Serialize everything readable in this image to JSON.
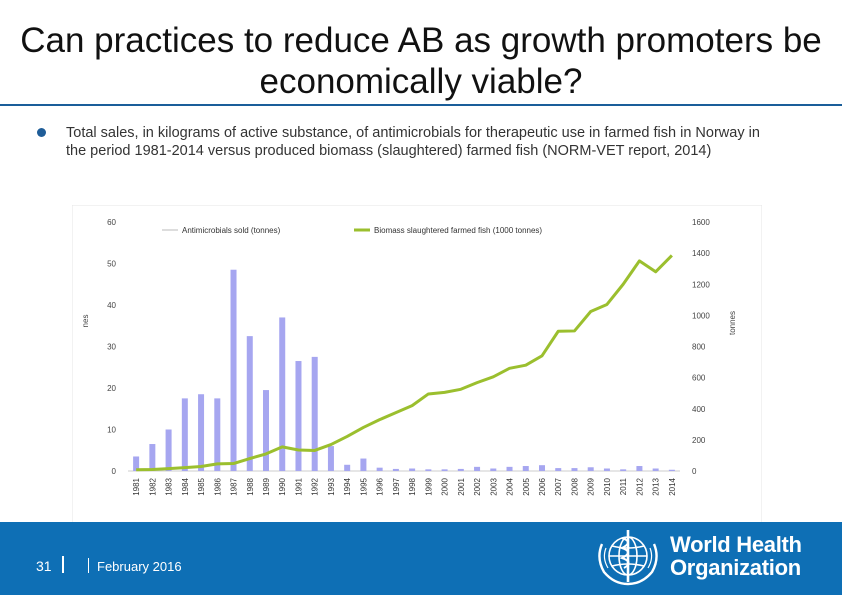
{
  "title": "Can practices to reduce AB as growth promoters be economically viable?",
  "bullet_text": "Total sales, in kilograms of active substance, of antimicrobials for therapeutic use in farmed fish in Norway in the period 1981-2014 versus produced biomass (slaughtered) farmed fish (NORM-VET report, 2014)",
  "footer": {
    "page_number": "31",
    "date": "February 2016",
    "org_line1": "World Health",
    "org_line2": "Organization"
  },
  "colors": {
    "footer_bg": "#0e6fb5",
    "bars": "#a6a6f0",
    "line": "#9bbf2e"
  },
  "chart_data": {
    "type": "bar",
    "categories": [
      "1981",
      "1982",
      "1983",
      "1984",
      "1985",
      "1986",
      "1987",
      "1988",
      "1989",
      "1990",
      "1991",
      "1992",
      "1993",
      "1994",
      "1995",
      "1996",
      "1997",
      "1998",
      "1999",
      "2000",
      "2001",
      "2002",
      "2003",
      "2004",
      "2005",
      "2006",
      "2007",
      "2008",
      "2009",
      "2010",
      "2011",
      "2012",
      "2013",
      "2014"
    ],
    "series": [
      {
        "name": "Antimicrobials sold (tonnes)",
        "type": "bar",
        "axis": "left",
        "values": [
          3.5,
          6.5,
          10,
          17.5,
          18.5,
          17.5,
          48.5,
          32.5,
          19.5,
          37,
          26.5,
          27.5,
          6.0,
          1.5,
          3.0,
          0.8,
          0.5,
          0.6,
          0.4,
          0.4,
          0.5,
          1.0,
          0.6,
          1.0,
          1.2,
          1.4,
          0.7,
          0.7,
          0.9,
          0.6,
          0.4,
          1.2,
          0.6,
          0.3
        ]
      },
      {
        "name": "Biomass slaughtered farmed fish (1000 tonnes)",
        "type": "line",
        "axis": "right",
        "values": [
          8,
          10,
          15,
          22,
          29,
          46,
          48,
          80,
          110,
          155,
          135,
          132,
          170,
          222,
          280,
          330,
          375,
          420,
          495,
          505,
          525,
          568,
          605,
          660,
          680,
          740,
          898,
          900,
          1025,
          1070,
          1200,
          1350,
          1280,
          1385
        ]
      }
    ],
    "y_left": {
      "ticks": [
        "0",
        "10",
        "20",
        "30",
        "40",
        "50",
        "60"
      ],
      "range": [
        0,
        60
      ],
      "label_fragment": "nes"
    },
    "y_right": {
      "ticks": [
        "0",
        "200",
        "400",
        "600",
        "800",
        "1000",
        "1200",
        "1400",
        "1600"
      ],
      "range": [
        0,
        1600
      ],
      "label": "tonnes"
    },
    "legend_placement": "top",
    "grid": false
  }
}
